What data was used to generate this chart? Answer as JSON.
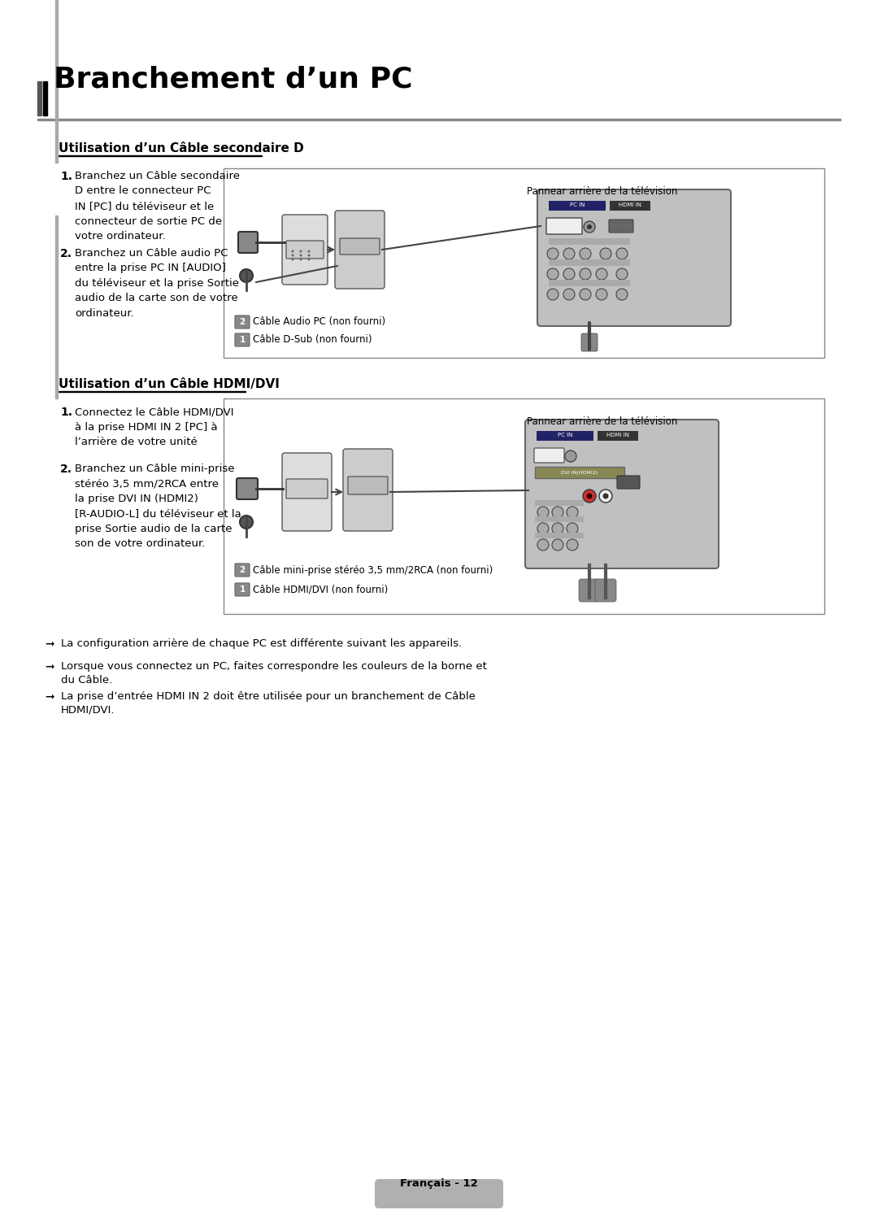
{
  "bg_color": "#ffffff",
  "title": "Branchement d’un PC",
  "section1_title": "Utilisation d’un Câble secondaire D",
  "section2_title": "Utilisation d’un Câble HDMI/DVI",
  "step1_num1": "1.",
  "step1_text1": "Branchez un Câble secondaire\nD entre le connecteur PC\nIN [PC] du téléviseur et le\nconnecteur de sortie PC de\nvotre ordinateur.",
  "step1_num2": "2.",
  "step1_text2": "Branchez un Câble audio PC\nentre la prise PC IN [AUDIO]\ndu téléviseur et la prise Sortie\naudio de la carte son de votre\nordinateur.",
  "step2_num1": "1.",
  "step2_text1": "Connectez le Câble HDMI/DVI\nà la prise HDMI IN 2 [PC] à\nl’arrière de votre unité",
  "step2_num2": "2.",
  "step2_text2": "Branchez un Câble mini-prise\nstéréo 3,5 mm/2RCA entre\nla prise DVI IN (HDMI2)\n[R-AUDIO-L] du téléviseur et la\nprise Sortie audio de la carte\nson de votre ordinateur.",
  "diag1_tv_label": "Pannear arrière de la télévision",
  "diag1_cable2": "Câble Audio PC (non fourni)",
  "diag1_cable1": "Câble D-Sub (non fourni)",
  "diag2_tv_label": "Pannear arrière de la télévision",
  "diag2_cable2": "Câble mini-prise stéréo 3,5 mm/2RCA (non fourni)",
  "diag2_cable1": "Câble HDMI/DVI (non fourni)",
  "note1": "La configuration arrière de chaque PC est différente suivant les appareils.",
  "note2": "Lorsque vous connectez un PC, faites correspondre les couleurs de la borne et\ndu Câble.",
  "note3": "La prise d’entrée HDMI IN 2 doit être utilisée pour un branchement de Câble\nHDMI/DVI.",
  "page_label": "Français - 12",
  "title_bar_color": "#333366",
  "section_underline_color": "#000000",
  "diagram_border_color": "#888888",
  "diagram_bg": "#f5f5f5",
  "tv_panel_color": "#b8b8b8",
  "tv_panel_border": "#666666",
  "page_btn_color": "#b0b0b0"
}
